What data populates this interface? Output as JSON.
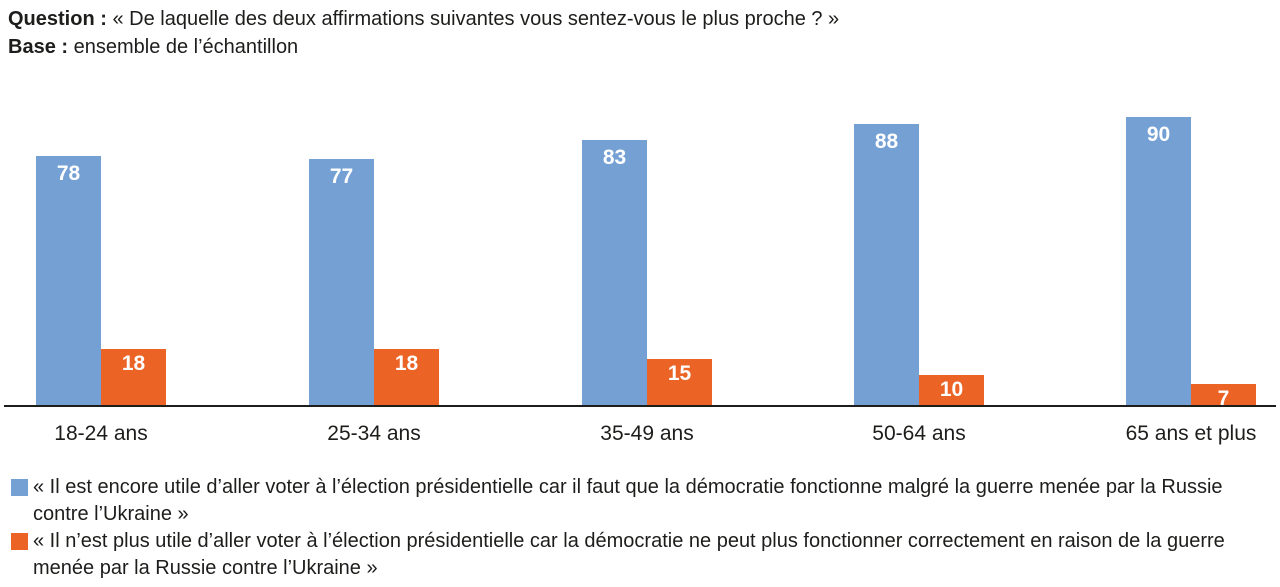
{
  "header": {
    "question_label": "Question :",
    "question_text": "« De laquelle des deux affirmations suivantes vous sentez-vous le plus proche ? »",
    "base_label": "Base :",
    "base_text": "ensemble de l’échantillon"
  },
  "chart_data": {
    "type": "bar",
    "categories": [
      "18-24 ans",
      "25-34 ans",
      "35-49 ans",
      "50-64 ans",
      "65 ans et plus"
    ],
    "series": [
      {
        "name": "« Il est encore utile d’aller voter à l’élection présidentielle car il faut que la démocratie fonctionne malgré la guerre menée par la Russie contre l’Ukraine »",
        "color": "#74A0D4",
        "values": [
          78,
          77,
          83,
          88,
          90
        ]
      },
      {
        "name": "« Il n’est plus utile d’aller voter à l’élection présidentielle car la démocratie ne peut plus fonctionner correctement en raison de la guerre menée par la Russie contre l’Ukraine »",
        "color": "#EC6326",
        "values": [
          18,
          18,
          15,
          10,
          7
        ]
      }
    ],
    "title": "",
    "xlabel": "",
    "ylabel": "",
    "ylim": [
      0,
      100
    ],
    "grid": false,
    "y_axis_visible": false,
    "value_labels": "inside-top, white, bold",
    "legend_position": "bottom"
  },
  "legend": {
    "items": [
      {
        "color": "#74A0D4",
        "lines": [
          "« Il est encore utile d’aller voter à l’élection présidentielle car il faut que la démocratie fonctionne malgré la guerre menée par la Russie",
          "contre l’Ukraine »"
        ]
      },
      {
        "color": "#EC6326",
        "lines": [
          "« Il n’est plus utile d’aller voter à l’élection présidentielle car la démocratie ne peut plus fonctionner correctement en raison de la guerre",
          "menée par la Russie contre l’Ukraine »"
        ]
      }
    ]
  },
  "colors": {
    "series_blue": "#74A0D4",
    "series_orange": "#EC6326",
    "axis": "#1D1D1B",
    "text": "#1D1D1B",
    "value_label": "#FFFFFF"
  }
}
